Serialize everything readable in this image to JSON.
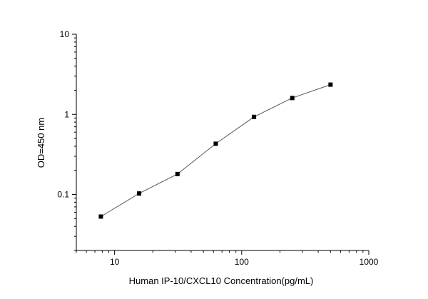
{
  "chart_data": {
    "type": "line",
    "title": "",
    "xlabel": "Human IP-10/CXCL10  Concentration(pg/mL)",
    "ylabel": "OD=450 nm",
    "xscale": "log",
    "yscale": "log",
    "xlim": [
      5,
      1000
    ],
    "ylim": [
      0.02,
      10
    ],
    "xticks": [
      10,
      100,
      1000
    ],
    "xtick_labels": [
      "10",
      "100",
      "1000"
    ],
    "yticks": [
      0.1,
      1,
      10
    ],
    "ytick_labels": [
      "0.1",
      "1",
      "10"
    ],
    "grid": false,
    "legend": "none",
    "series": [
      {
        "x": [
          7.8,
          15.6,
          31.25,
          62.5,
          125,
          250,
          500
        ],
        "y": [
          0.053,
          0.103,
          0.18,
          0.43,
          0.93,
          1.6,
          2.35
        ]
      }
    ],
    "colors": {
      "line": "#555555",
      "marker": "#000000",
      "axis": "#000000"
    }
  }
}
